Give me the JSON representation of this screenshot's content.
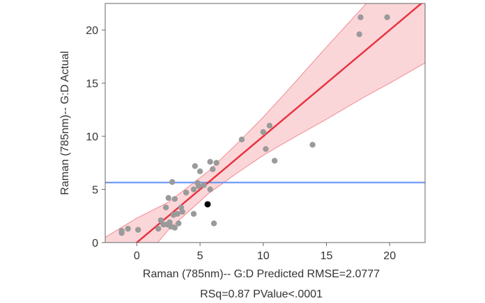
{
  "chart_data": {
    "type": "scatter",
    "title": "",
    "xlabel": "Raman (785nm)-- G:D Predicted RMSE=2.0777",
    "xlabel_line2": "RSq=0.87 PValue<.0001",
    "ylabel": "Raman (785nm)-- G:D Actual",
    "xlim": [
      -2.5,
      22.8
    ],
    "ylim": [
      0,
      22.5
    ],
    "x_ticks": [
      0,
      5,
      10,
      15,
      20
    ],
    "y_ticks": [
      0,
      5,
      10,
      15,
      20
    ],
    "grid": false,
    "legend": "none",
    "colors": {
      "points": "#9a9a9a",
      "highlight_point": "#000000",
      "fit_line": "#e8333f",
      "confidence_band": "#f9c8cc",
      "confidence_band_edge": "#f08a92",
      "mean_line": "#5b8ef0",
      "frame": "#666666"
    },
    "mean_line_y": 5.65,
    "fit_line": {
      "x": [
        -2.5,
        22.8
      ],
      "y": [
        -2.5,
        22.8
      ]
    },
    "confidence_band": {
      "x": [
        -2.5,
        0,
        2.5,
        5.65,
        8,
        10,
        12,
        15,
        18,
        20,
        22.8
      ],
      "lower": [
        -5.5,
        -2.3,
        1.2,
        4.6,
        6.6,
        8.2,
        9.6,
        11.6,
        13.7,
        15.0,
        16.9
      ],
      "upper": [
        0.5,
        2.3,
        3.8,
        6.7,
        9.4,
        11.8,
        14.4,
        18.4,
        22.3,
        25.0,
        28.7
      ]
    },
    "points": [
      {
        "x": -1.2,
        "y": 1.1
      },
      {
        "x": -1.2,
        "y": 0.9
      },
      {
        "x": -0.7,
        "y": 1.3
      },
      {
        "x": 0.1,
        "y": 1.2
      },
      {
        "x": 1.7,
        "y": 1.3
      },
      {
        "x": 1.9,
        "y": 2.1
      },
      {
        "x": 2.1,
        "y": 1.7
      },
      {
        "x": 2.3,
        "y": 3.3
      },
      {
        "x": 2.4,
        "y": 1.7
      },
      {
        "x": 2.5,
        "y": 4.2
      },
      {
        "x": 2.6,
        "y": 1.9
      },
      {
        "x": 2.7,
        "y": 1.5
      },
      {
        "x": 2.8,
        "y": 5.7
      },
      {
        "x": 2.9,
        "y": 2.6
      },
      {
        "x": 3.0,
        "y": 4.1
      },
      {
        "x": 3.0,
        "y": 1.4
      },
      {
        "x": 3.2,
        "y": 2.7
      },
      {
        "x": 3.3,
        "y": 1.8
      },
      {
        "x": 3.5,
        "y": 3.3
      },
      {
        "x": 3.6,
        "y": 2.9
      },
      {
        "x": 3.9,
        "y": 4.7
      },
      {
        "x": 4.5,
        "y": 5.0
      },
      {
        "x": 4.5,
        "y": 2.7
      },
      {
        "x": 4.6,
        "y": 7.2
      },
      {
        "x": 4.8,
        "y": 5.6
      },
      {
        "x": 4.9,
        "y": 5.3
      },
      {
        "x": 5.0,
        "y": 6.7
      },
      {
        "x": 5.3,
        "y": 5.4
      },
      {
        "x": 5.8,
        "y": 5.0
      },
      {
        "x": 5.8,
        "y": 7.6
      },
      {
        "x": 6.0,
        "y": 6.9
      },
      {
        "x": 6.1,
        "y": 1.8
      },
      {
        "x": 6.3,
        "y": 7.5
      },
      {
        "x": 8.3,
        "y": 9.7
      },
      {
        "x": 10.0,
        "y": 10.4
      },
      {
        "x": 10.2,
        "y": 8.8
      },
      {
        "x": 10.5,
        "y": 11.0
      },
      {
        "x": 10.9,
        "y": 7.7
      },
      {
        "x": 13.9,
        "y": 9.2
      },
      {
        "x": 17.6,
        "y": 19.6
      },
      {
        "x": 17.7,
        "y": 21.2
      },
      {
        "x": 19.8,
        "y": 21.2
      }
    ],
    "highlight_points": [
      {
        "x": 5.6,
        "y": 3.6
      }
    ]
  }
}
